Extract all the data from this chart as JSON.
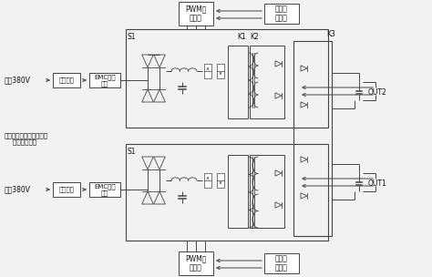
{
  "bg_color": "#f2f2f2",
  "line_color": "#444444",
  "text_color": "#111111",
  "fig_width": 4.74,
  "fig_height": 3.04,
  "dpi": 100,
  "labels": {
    "aux_input": "辅绕380V",
    "mains_input": "市电380V",
    "surge1": "防雷电路",
    "surge2": "防雷电路",
    "emc1": "EMC滤波\n电路",
    "emc2": "EMC滤波\n电路",
    "pwm_top": "PWM控\n制芯片",
    "pwm_bot": "PWM控\n制芯片",
    "fb_top": "反馈调\n理电路",
    "fb_bot": "反馈调\n理电路",
    "s1_top": "S1",
    "s1_bot": "S1",
    "k1": "K1",
    "k2": "K2",
    "k3": "K3",
    "out1": "OUT1",
    "out2": "OUT2",
    "note": "辅助绕组、市电输入可同\n    相、可不同相"
  }
}
